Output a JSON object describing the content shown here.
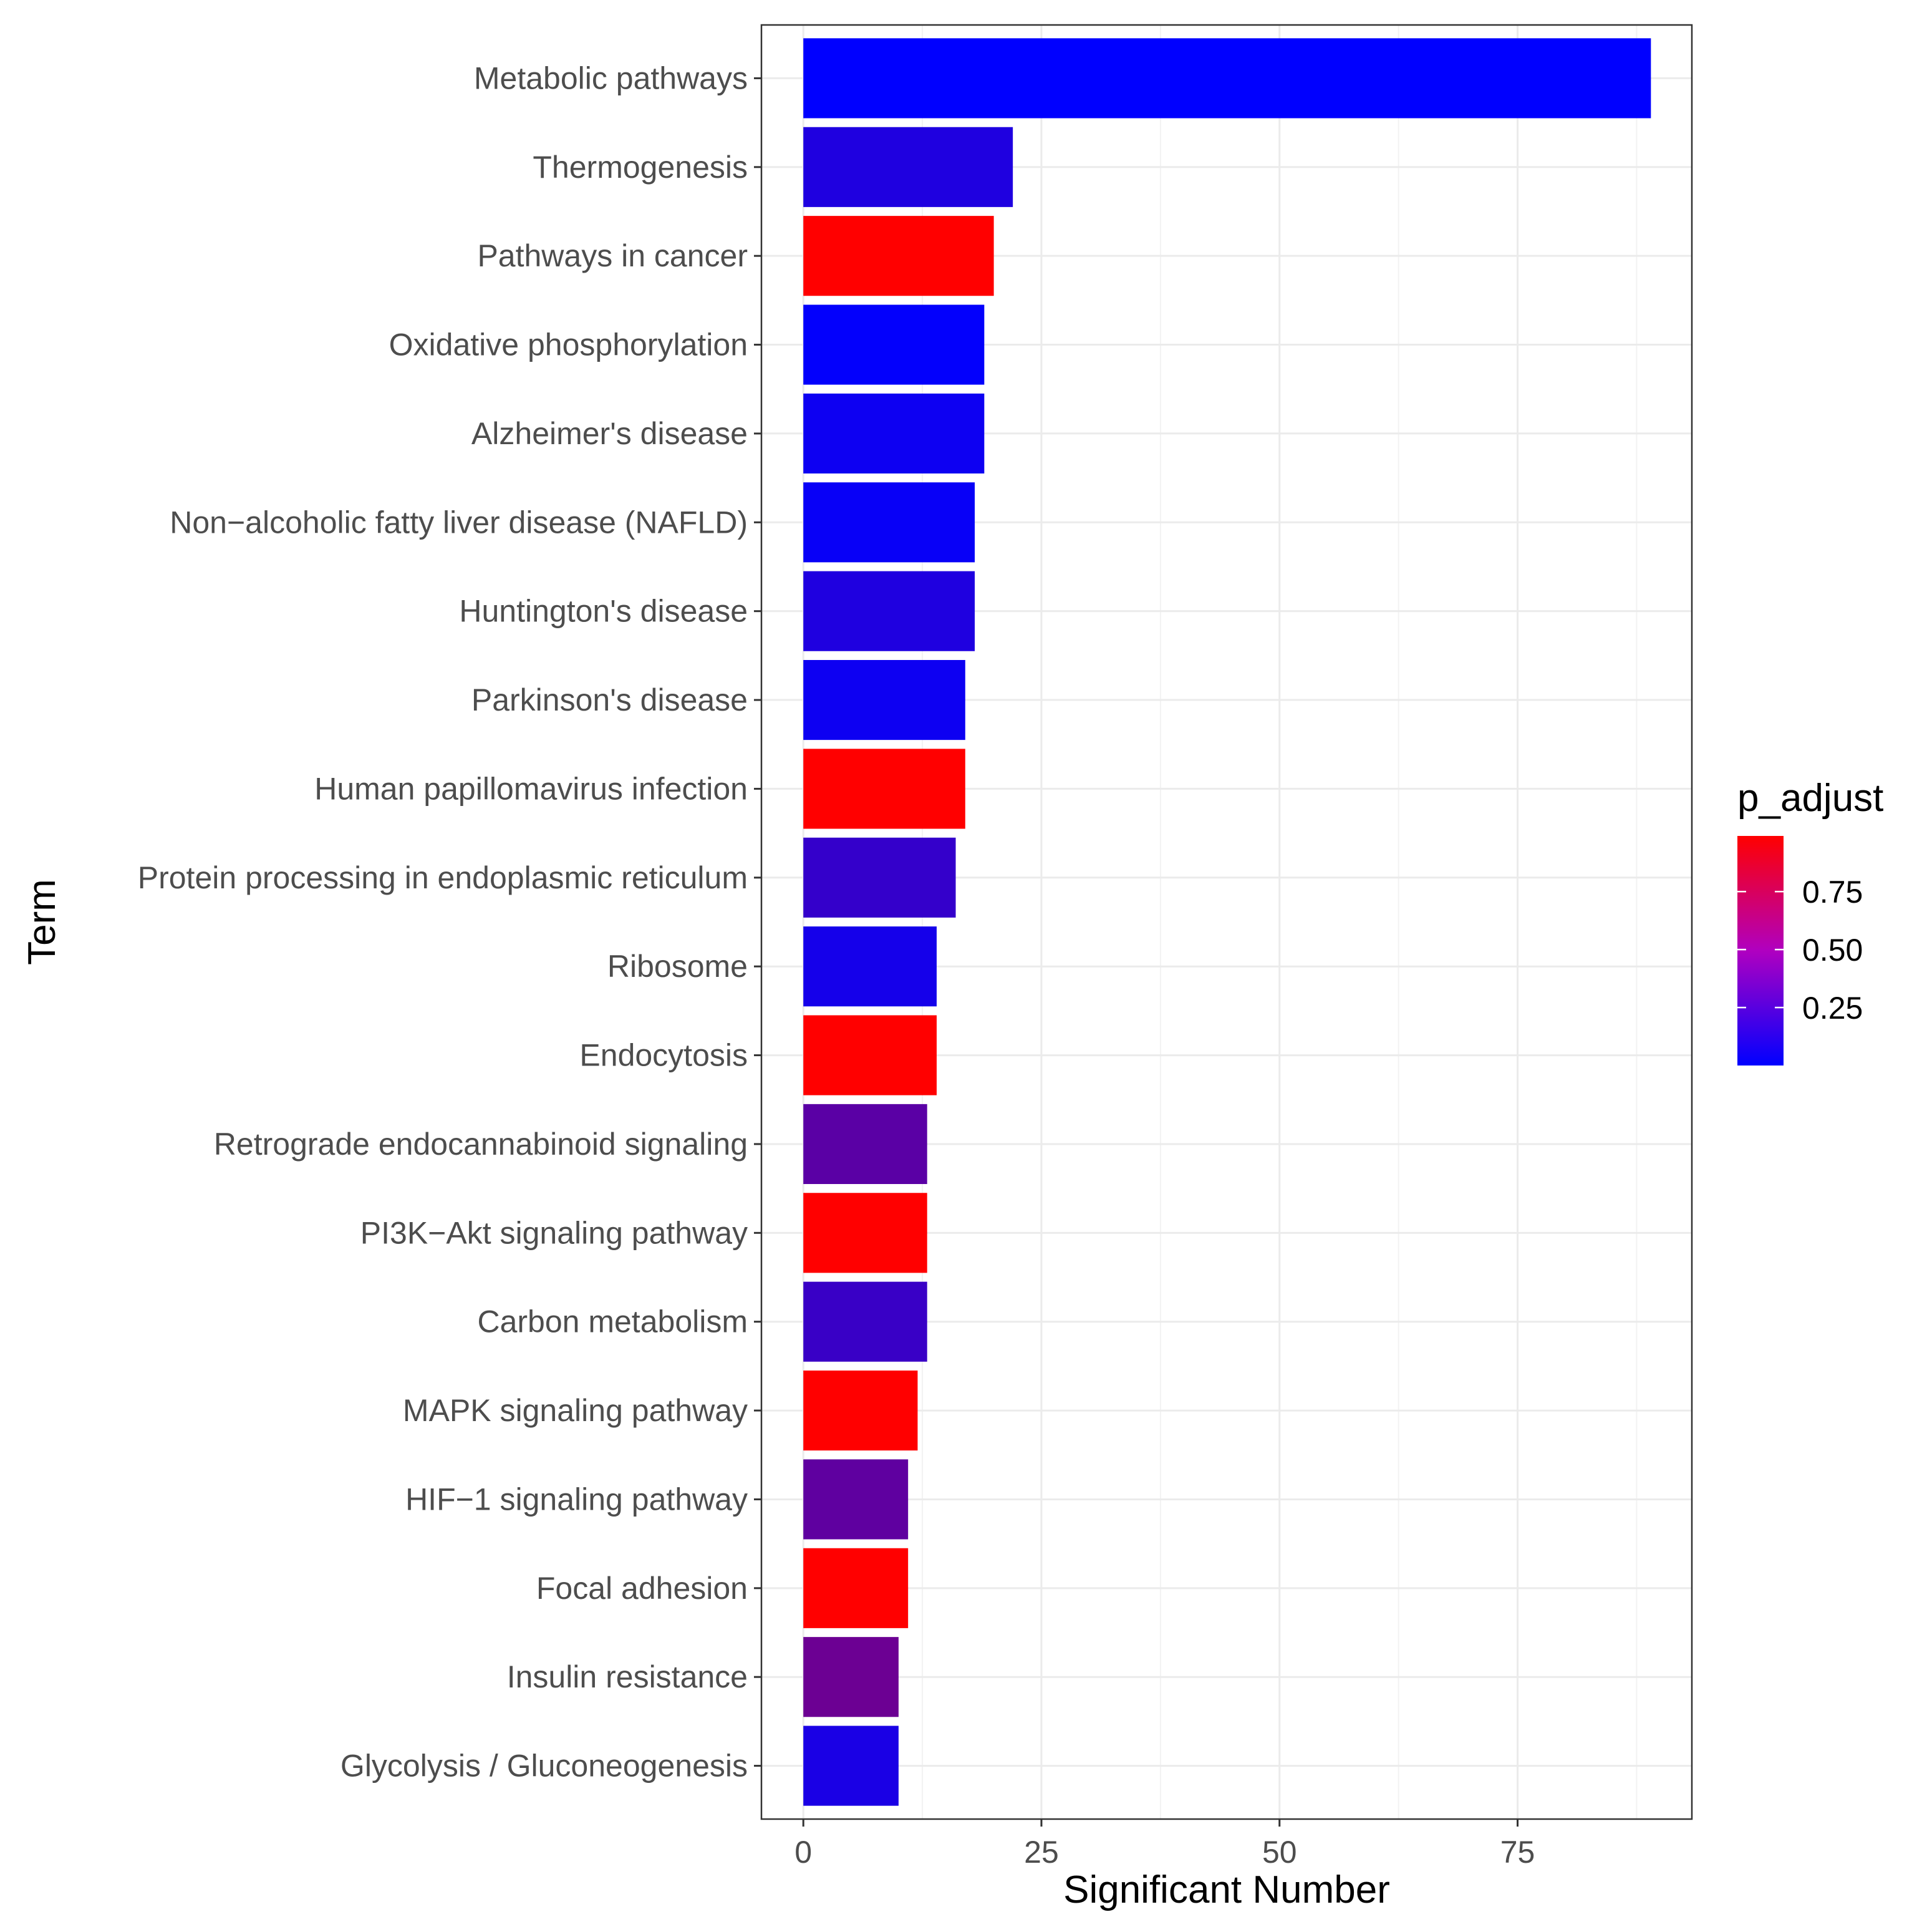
{
  "chart_data": {
    "type": "bar",
    "orientation": "horizontal",
    "title": "",
    "xlabel": "Significant Number",
    "ylabel": "Term",
    "xlim": [
      -4.4,
      93.3
    ],
    "xticks": [
      0,
      25,
      50,
      75
    ],
    "xtick_labels": [
      "0",
      "25",
      "50",
      "75"
    ],
    "grid": true,
    "categories": [
      "Metabolic pathways",
      "Thermogenesis",
      "Pathways in cancer",
      "Oxidative phosphorylation",
      "Alzheimer's disease",
      "Non−alcoholic fatty liver disease (NAFLD)",
      "Huntington's disease",
      "Parkinson's disease",
      "Human papillomavirus infection",
      "Protein processing in endoplasmic reticulum",
      "Ribosome",
      "Endocytosis",
      "Retrograde endocannabinoid signaling",
      "PI3K−Akt signaling pathway",
      "Carbon metabolism",
      "MAPK signaling pathway",
      "HIF−1 signaling pathway",
      "Focal adhesion",
      "Insulin resistance",
      "Glycolysis / Gluconeogenesis"
    ],
    "values": [
      89,
      22,
      20,
      19,
      19,
      18,
      18,
      17,
      17,
      16,
      14,
      14,
      13,
      13,
      13,
      12,
      11,
      11,
      10,
      10
    ],
    "p_adjust": [
      0.0001,
      0.12,
      0.99,
      0.01,
      0.05,
      0.03,
      0.12,
      0.05,
      0.99,
      0.2,
      0.08,
      0.99,
      0.35,
      0.99,
      0.22,
      0.99,
      0.37,
      0.99,
      0.42,
      0.1
    ],
    "legend": {
      "title": "p_adjust",
      "position": "right",
      "breaks": [
        0.25,
        0.5,
        0.75
      ],
      "labels": [
        "0.25",
        "0.50",
        "0.75"
      ],
      "range": [
        0.0,
        0.99
      ],
      "colors": {
        "low": "#0000ff",
        "high": "#ff0000"
      }
    }
  }
}
